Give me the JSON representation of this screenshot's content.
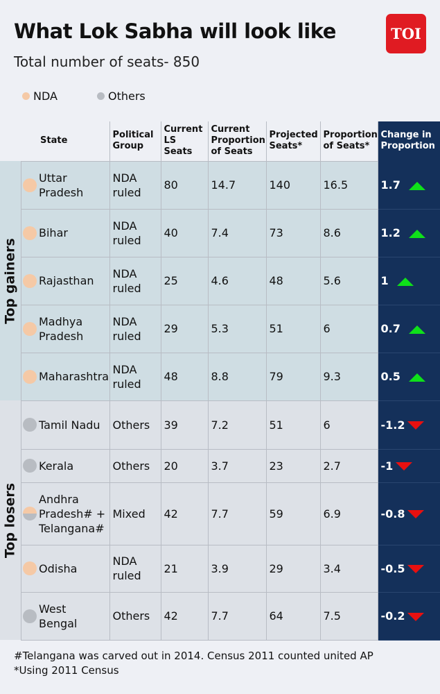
{
  "title": "What Lok Sabha will look like",
  "subtitle": "Total number of seats- 850",
  "logo": "TOI",
  "legend": [
    {
      "label": "NDA",
      "color": "#f5c9a6"
    },
    {
      "label": "Others",
      "color": "#b8bcc2"
    }
  ],
  "colors": {
    "nda": "#f5c9a6",
    "others": "#b8bcc2",
    "navy": "#14305a",
    "up": "#0fe01a",
    "down": "#e81010"
  },
  "headers": [
    "State",
    "Political Group",
    "Current LS Seats",
    "Current Proportion of Seats",
    "Projected Seats*",
    "Proportion of Seats*",
    "Change in Proportion"
  ],
  "groups": {
    "gainers": "Top gainers",
    "losers": "Top losers"
  },
  "rows": [
    {
      "state": "Uttar Pradesh",
      "group": "NDA ruled",
      "cur": "80",
      "curp": "14.7",
      "proj": "140",
      "prop": "16.5",
      "chg": "1.7",
      "dir": "up",
      "dot": "nda",
      "sec": "g"
    },
    {
      "state": "Bihar",
      "group": "NDA ruled",
      "cur": "40",
      "curp": "7.4",
      "proj": "73",
      "prop": "8.6",
      "chg": "1.2",
      "dir": "up",
      "dot": "nda",
      "sec": "g"
    },
    {
      "state": "Rajasthan",
      "group": "NDA ruled",
      "cur": "25",
      "curp": "4.6",
      "proj": "48",
      "prop": "5.6",
      "chg": "1",
      "dir": "up",
      "dot": "nda",
      "sec": "g"
    },
    {
      "state": "Madhya Pradesh",
      "group": "NDA ruled",
      "cur": "29",
      "curp": "5.3",
      "proj": "51",
      "prop": "6",
      "chg": "0.7",
      "dir": "up",
      "dot": "nda",
      "sec": "g"
    },
    {
      "state": "Maharashtra",
      "group": "NDA ruled",
      "cur": "48",
      "curp": "8.8",
      "proj": "79",
      "prop": "9.3",
      "chg": "0.5",
      "dir": "up",
      "dot": "nda",
      "sec": "g"
    },
    {
      "state": "Tamil Nadu",
      "group": "Others",
      "cur": "39",
      "curp": "7.2",
      "proj": "51",
      "prop": "6",
      "chg": "-1.2",
      "dir": "down",
      "dot": "others",
      "sec": "l"
    },
    {
      "state": "Kerala",
      "group": "Others",
      "cur": "20",
      "curp": "3.7",
      "proj": "23",
      "prop": "2.7",
      "chg": "-1",
      "dir": "down",
      "dot": "others",
      "sec": "l"
    },
    {
      "state": "Andhra Pradesh# + Telangana#",
      "group": "Mixed",
      "cur": "42",
      "curp": "7.7",
      "proj": "59",
      "prop": "6.9",
      "chg": "-0.8",
      "dir": "down",
      "dot": "mixed",
      "sec": "l"
    },
    {
      "state": "Odisha",
      "group": "NDA ruled",
      "cur": "21",
      "curp": "3.9",
      "proj": "29",
      "prop": "3.4",
      "chg": "-0.5",
      "dir": "down",
      "dot": "nda",
      "sec": "l"
    },
    {
      "state": "West Bengal",
      "group": "Others",
      "cur": "42",
      "curp": "7.7",
      "proj": "64",
      "prop": "7.5",
      "chg": "-0.2",
      "dir": "down",
      "dot": "others",
      "sec": "l"
    }
  ],
  "footnotes": [
    "#Telangana was carved out in 2014. Census 2011 counted united AP",
    "*Using 2011 Census"
  ]
}
